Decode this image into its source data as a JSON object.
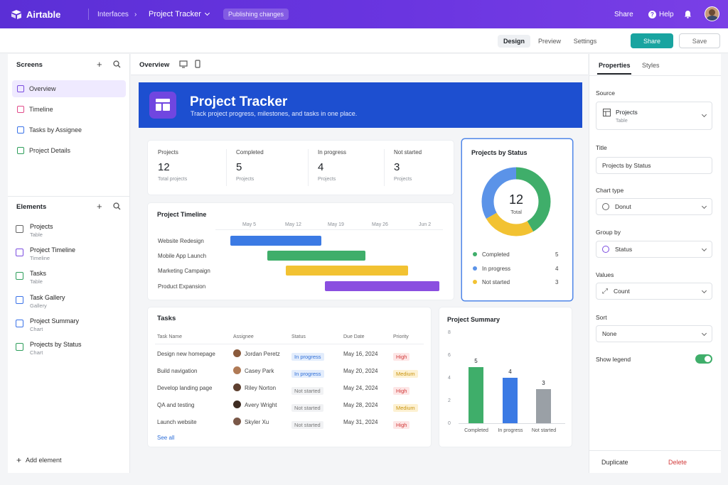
{
  "topbar": {
    "brand": "Airtable",
    "breadcrumb_root": "Interfaces",
    "breadcrumb_sep": "›",
    "project": "Project Tracker",
    "status_pill": "Publishing changes",
    "share": "Share",
    "help": "Help"
  },
  "toolbar": {
    "tabs": [
      "Design",
      "Preview",
      "Settings"
    ],
    "share_button": "Share",
    "save_button": "Save"
  },
  "screens": {
    "title": "Screens",
    "items": [
      {
        "label": "Overview",
        "color": "#7b4ce0",
        "active": true
      },
      {
        "label": "Timeline",
        "color": "#e14b8a"
      },
      {
        "label": "Tasks by Assignee",
        "color": "#3b73e8"
      },
      {
        "label": "Project Details",
        "color": "#2e9e5b"
      }
    ]
  },
  "elements": {
    "title": "Elements",
    "items": [
      {
        "name": "Projects",
        "sub": "Table",
        "color": "#666"
      },
      {
        "name": "Project Timeline",
        "sub": "Timeline",
        "color": "#7b4ce0"
      },
      {
        "name": "Tasks",
        "sub": "Table",
        "color": "#2e9e5b"
      },
      {
        "name": "Task Gallery",
        "sub": "Gallery",
        "color": "#3b73e8"
      },
      {
        "name": "Project Summary",
        "sub": "Chart",
        "color": "#3b73e8"
      },
      {
        "name": "Projects by Status",
        "sub": "Chart",
        "color": "#2e9e5b"
      }
    ],
    "add": "Add element"
  },
  "canvas": {
    "header": "Overview",
    "hero_title": "Project Tracker",
    "hero_sub": "Track project progress, milestones, and tasks in one place.",
    "stats": [
      {
        "label": "Projects",
        "value": "12",
        "sub": "Total projects"
      },
      {
        "label": "Completed",
        "value": "5",
        "sub": "Projects"
      },
      {
        "label": "In progress",
        "value": "4",
        "sub": "Projects"
      },
      {
        "label": "Not started",
        "value": "3",
        "sub": "Projects"
      }
    ],
    "timeline": {
      "title": "Project Timeline",
      "dates": [
        "May 5",
        "May 12",
        "May 19",
        "May 26",
        "Jun 2"
      ],
      "rows": [
        "Website Redesign",
        "Mobile App Launch",
        "Marketing Campaign",
        "Product Expansion"
      ]
    },
    "tasks": {
      "title": "Tasks",
      "headers": [
        "Task Name",
        "Assignee",
        "Status",
        "Due Date",
        "Priority"
      ],
      "rows": [
        {
          "task": "Design new homepage",
          "who": "Jordan Peretz",
          "status": "In progress",
          "due": "May 16, 2024",
          "prio": "High"
        },
        {
          "task": "Build navigation",
          "who": "Casey Park",
          "status": "In progress",
          "due": "May 20, 2024",
          "prio": "Medium"
        },
        {
          "task": "Develop landing page",
          "who": "Riley Norton",
          "status": "Not started",
          "due": "May 24, 2024",
          "prio": "High"
        },
        {
          "task": "QA and testing",
          "who": "Avery Wright",
          "status": "Not started",
          "due": "May 28, 2024",
          "prio": "Medium"
        },
        {
          "task": "Launch website",
          "who": "Skyler Xu",
          "status": "Not started",
          "due": "May 31, 2024",
          "prio": "High"
        }
      ],
      "see_all": "See all"
    },
    "donut": {
      "title": "Projects by Status",
      "center_value": "12",
      "center_label": "Total",
      "legend": [
        {
          "label": "Completed",
          "value": "5",
          "color": "#3fae6a"
        },
        {
          "label": "In progress",
          "value": "4",
          "color": "#5b93e8"
        },
        {
          "label": "Not started",
          "value": "3",
          "color": "#f2c232"
        }
      ]
    },
    "summary": {
      "title": "Project Summary",
      "yticks": [
        "0",
        "2",
        "4",
        "6",
        "8"
      ],
      "bars": [
        {
          "label": "Completed",
          "value": "5",
          "color": "#3fae6a"
        },
        {
          "label": "In progress",
          "value": "4",
          "color": "#3b7ae4"
        },
        {
          "label": "Not started",
          "value": "3",
          "color": "#9aa0a6"
        }
      ]
    }
  },
  "chart_data": [
    {
      "type": "pie",
      "title": "Projects by Status",
      "categories": [
        "Completed",
        "In progress",
        "Not started"
      ],
      "values": [
        5,
        4,
        3
      ]
    },
    {
      "type": "bar",
      "title": "Project Summary",
      "categories": [
        "Completed",
        "In progress",
        "Not started"
      ],
      "values": [
        5,
        4,
        3
      ],
      "ylim": [
        0,
        8
      ]
    }
  ],
  "properties": {
    "tabs": [
      "Properties",
      "Styles"
    ],
    "source_label": "Source",
    "source_name": "Projects",
    "source_sub": "Table",
    "title_label": "Title",
    "title_value": "Projects by Status",
    "charttype_label": "Chart type",
    "charttype_value": "Donut",
    "groupby_label": "Group by",
    "groupby_value": "Status",
    "values_label": "Values",
    "values_value": "Count",
    "sort_label": "Sort",
    "sort_value": "None",
    "legend_label": "Show legend",
    "duplicate": "Duplicate",
    "delete": "Delete"
  }
}
